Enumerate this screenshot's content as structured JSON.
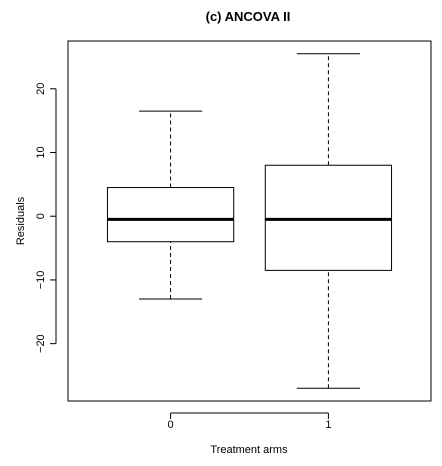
{
  "chart_data": {
    "type": "boxplot",
    "title": "(c) ANCOVA II",
    "xlabel": "Treatment arms",
    "ylabel": "Residuals",
    "ylim": [
      -29,
      27.5
    ],
    "yticks": [
      20,
      10,
      0,
      -10,
      -20
    ],
    "ytick_labels": [
      "20",
      "10",
      "0",
      "−10",
      "−20"
    ],
    "categories": [
      "0",
      "1"
    ],
    "boxes": [
      {
        "category": "0",
        "whisker_low": -13,
        "q1": -4,
        "median": -0.5,
        "q3": 4.5,
        "whisker_high": 16.5
      },
      {
        "category": "1",
        "whisker_low": -27,
        "q1": -8.5,
        "median": -0.5,
        "q3": 8,
        "whisker_high": 25.5
      }
    ],
    "grid": false
  }
}
